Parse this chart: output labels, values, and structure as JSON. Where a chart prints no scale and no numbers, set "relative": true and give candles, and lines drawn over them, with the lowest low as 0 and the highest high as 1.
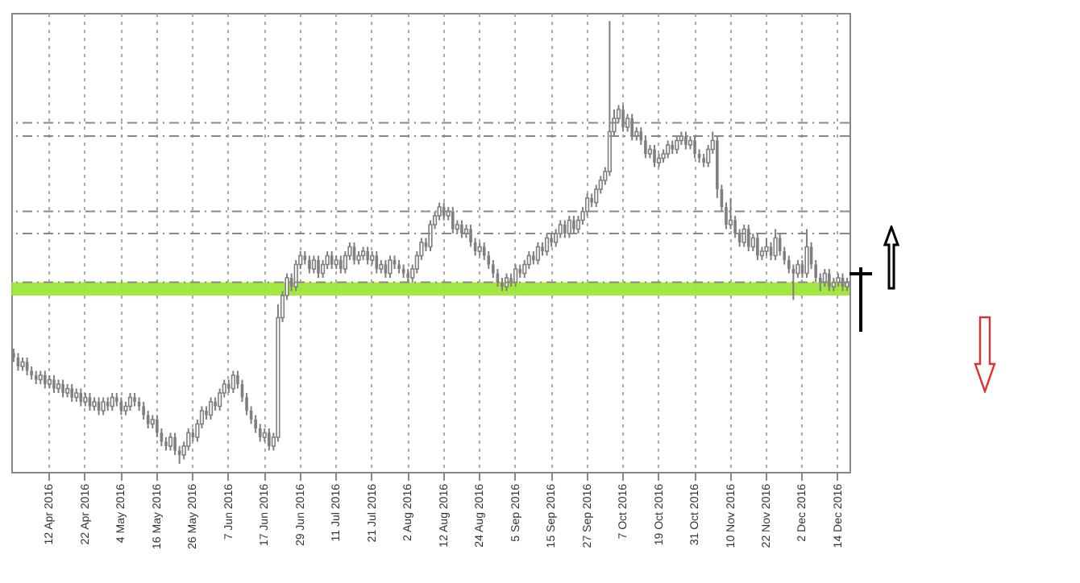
{
  "chart_data": {
    "type": "candlestick",
    "relative": true,
    "color": "#7f7f7f",
    "grid": "x",
    "categories": [
      null,
      null,
      null,
      null,
      null,
      null,
      null,
      null,
      "12 Apr 2016",
      null,
      null,
      null,
      null,
      null,
      null,
      null,
      "22 Apr 2016",
      null,
      null,
      null,
      null,
      null,
      null,
      null,
      "4 May 2016",
      null,
      null,
      null,
      null,
      null,
      null,
      null,
      "16 May 2016",
      null,
      null,
      null,
      null,
      null,
      null,
      null,
      "26 May 2016",
      null,
      null,
      null,
      null,
      null,
      null,
      null,
      "7 Jun 2016",
      null,
      null,
      null,
      null,
      null,
      null,
      null,
      "17 Jun 2016",
      null,
      null,
      null,
      null,
      null,
      null,
      null,
      "29 Jun 2016",
      null,
      null,
      null,
      null,
      null,
      null,
      null,
      "11 Jul 2016",
      null,
      null,
      null,
      null,
      null,
      null,
      null,
      "21 Jul 2016",
      null,
      null,
      null,
      null,
      null,
      null,
      null,
      "2 Aug 2016",
      null,
      null,
      null,
      null,
      null,
      null,
      null,
      "12 Aug 2016",
      null,
      null,
      null,
      null,
      null,
      null,
      null,
      "24 Aug 2016",
      null,
      null,
      null,
      null,
      null,
      null,
      null,
      "5 Sep 2016",
      null,
      null,
      null,
      null,
      null,
      null,
      null,
      "15 Sep 2016",
      null,
      null,
      null,
      null,
      null,
      null,
      null,
      "27 Sep 2016",
      null,
      null,
      null,
      null,
      null,
      null,
      null,
      "7 Oct 2016",
      null,
      null,
      null,
      null,
      null,
      null,
      null,
      "19 Oct 2016",
      null,
      null,
      null,
      null,
      null,
      null,
      null,
      "31 Oct 2016",
      null,
      null,
      null,
      null,
      null,
      null,
      null,
      "10 Nov 2016",
      null,
      null,
      null,
      null,
      null,
      null,
      null,
      "22 Nov 2016",
      null,
      null,
      null,
      null,
      null,
      null,
      null,
      "2 Dec 2016",
      null,
      null,
      null,
      null,
      null,
      null,
      null,
      "14 Dec 2016",
      null,
      null
    ],
    "ohlc": [
      [
        0.25,
        0.26,
        0.23,
        0.24
      ],
      [
        0.24,
        0.25,
        0.21,
        0.22
      ],
      [
        0.22,
        0.24,
        0.21,
        0.23
      ],
      [
        0.23,
        0.24,
        0.2,
        0.21
      ],
      [
        0.21,
        0.22,
        0.19,
        0.2
      ],
      [
        0.2,
        0.21,
        0.18,
        0.19
      ],
      [
        0.19,
        0.21,
        0.18,
        0.2
      ],
      [
        0.2,
        0.21,
        0.17,
        0.18
      ],
      [
        0.18,
        0.2,
        0.17,
        0.19
      ],
      [
        0.19,
        0.2,
        0.16,
        0.17
      ],
      [
        0.17,
        0.19,
        0.16,
        0.18
      ],
      [
        0.18,
        0.19,
        0.15,
        0.16
      ],
      [
        0.16,
        0.18,
        0.15,
        0.17
      ],
      [
        0.17,
        0.18,
        0.14,
        0.15
      ],
      [
        0.15,
        0.17,
        0.14,
        0.16
      ],
      [
        0.16,
        0.17,
        0.13,
        0.14
      ],
      [
        0.14,
        0.16,
        0.13,
        0.15
      ],
      [
        0.15,
        0.16,
        0.12,
        0.13
      ],
      [
        0.13,
        0.15,
        0.12,
        0.14
      ],
      [
        0.14,
        0.15,
        0.11,
        0.12
      ],
      [
        0.12,
        0.15,
        0.11,
        0.14
      ],
      [
        0.14,
        0.15,
        0.12,
        0.13
      ],
      [
        0.13,
        0.16,
        0.12,
        0.15
      ],
      [
        0.15,
        0.16,
        0.13,
        0.14
      ],
      [
        0.14,
        0.15,
        0.11,
        0.12
      ],
      [
        0.12,
        0.14,
        0.11,
        0.13
      ],
      [
        0.13,
        0.16,
        0.12,
        0.15
      ],
      [
        0.15,
        0.16,
        0.13,
        0.14
      ],
      [
        0.14,
        0.15,
        0.12,
        0.13
      ],
      [
        0.13,
        0.14,
        0.1,
        0.11
      ],
      [
        0.11,
        0.12,
        0.08,
        0.09
      ],
      [
        0.09,
        0.11,
        0.08,
        0.1
      ],
      [
        0.1,
        0.11,
        0.06,
        0.07
      ],
      [
        0.07,
        0.08,
        0.04,
        0.05
      ],
      [
        0.05,
        0.06,
        0.03,
        0.04
      ],
      [
        0.04,
        0.07,
        0.03,
        0.06
      ],
      [
        0.06,
        0.07,
        0.02,
        0.03
      ],
      [
        0.03,
        0.04,
        0.0,
        0.02
      ],
      [
        0.02,
        0.05,
        0.01,
        0.04
      ],
      [
        0.04,
        0.08,
        0.03,
        0.07
      ],
      [
        0.07,
        0.08,
        0.05,
        0.06
      ],
      [
        0.06,
        0.1,
        0.05,
        0.09
      ],
      [
        0.09,
        0.13,
        0.08,
        0.12
      ],
      [
        0.12,
        0.13,
        0.1,
        0.11
      ],
      [
        0.11,
        0.15,
        0.1,
        0.14
      ],
      [
        0.14,
        0.15,
        0.12,
        0.13
      ],
      [
        0.13,
        0.17,
        0.12,
        0.16
      ],
      [
        0.16,
        0.19,
        0.15,
        0.18
      ],
      [
        0.18,
        0.19,
        0.16,
        0.17
      ],
      [
        0.17,
        0.21,
        0.16,
        0.2
      ],
      [
        0.2,
        0.21,
        0.17,
        0.18
      ],
      [
        0.18,
        0.19,
        0.14,
        0.15
      ],
      [
        0.15,
        0.16,
        0.11,
        0.12
      ],
      [
        0.12,
        0.13,
        0.09,
        0.1
      ],
      [
        0.1,
        0.11,
        0.07,
        0.08
      ],
      [
        0.08,
        0.09,
        0.05,
        0.06
      ],
      [
        0.06,
        0.08,
        0.05,
        0.07
      ],
      [
        0.07,
        0.08,
        0.03,
        0.04
      ],
      [
        0.04,
        0.07,
        0.03,
        0.06
      ],
      [
        0.06,
        0.36,
        0.05,
        0.33
      ],
      [
        0.33,
        0.39,
        0.32,
        0.38
      ],
      [
        0.38,
        0.43,
        0.37,
        0.42
      ],
      [
        0.42,
        0.43,
        0.39,
        0.4
      ],
      [
        0.4,
        0.46,
        0.39,
        0.45
      ],
      [
        0.45,
        0.48,
        0.44,
        0.47
      ],
      [
        0.47,
        0.48,
        0.45,
        0.46
      ],
      [
        0.46,
        0.47,
        0.43,
        0.44
      ],
      [
        0.44,
        0.47,
        0.43,
        0.46
      ],
      [
        0.46,
        0.47,
        0.42,
        0.43
      ],
      [
        0.43,
        0.46,
        0.42,
        0.45
      ],
      [
        0.45,
        0.48,
        0.44,
        0.47
      ],
      [
        0.47,
        0.48,
        0.44,
        0.45
      ],
      [
        0.45,
        0.47,
        0.44,
        0.46
      ],
      [
        0.46,
        0.47,
        0.43,
        0.44
      ],
      [
        0.44,
        0.48,
        0.43,
        0.47
      ],
      [
        0.47,
        0.5,
        0.46,
        0.49
      ],
      [
        0.49,
        0.5,
        0.45,
        0.46
      ],
      [
        0.46,
        0.48,
        0.45,
        0.47
      ],
      [
        0.47,
        0.49,
        0.46,
        0.48
      ],
      [
        0.48,
        0.49,
        0.45,
        0.46
      ],
      [
        0.46,
        0.48,
        0.45,
        0.47
      ],
      [
        0.47,
        0.48,
        0.43,
        0.44
      ],
      [
        0.44,
        0.46,
        0.43,
        0.45
      ],
      [
        0.45,
        0.46,
        0.42,
        0.43
      ],
      [
        0.43,
        0.47,
        0.42,
        0.46
      ],
      [
        0.46,
        0.47,
        0.44,
        0.45
      ],
      [
        0.45,
        0.46,
        0.43,
        0.44
      ],
      [
        0.44,
        0.45,
        0.42,
        0.43
      ],
      [
        0.43,
        0.44,
        0.41,
        0.42
      ],
      [
        0.42,
        0.45,
        0.41,
        0.44
      ],
      [
        0.44,
        0.48,
        0.43,
        0.47
      ],
      [
        0.47,
        0.51,
        0.46,
        0.5
      ],
      [
        0.5,
        0.51,
        0.48,
        0.49
      ],
      [
        0.49,
        0.55,
        0.48,
        0.54
      ],
      [
        0.54,
        0.57,
        0.53,
        0.56
      ],
      [
        0.56,
        0.59,
        0.55,
        0.58
      ],
      [
        0.58,
        0.59,
        0.55,
        0.56
      ],
      [
        0.56,
        0.58,
        0.55,
        0.57
      ],
      [
        0.57,
        0.58,
        0.52,
        0.53
      ],
      [
        0.53,
        0.55,
        0.52,
        0.54
      ],
      [
        0.54,
        0.55,
        0.51,
        0.52
      ],
      [
        0.52,
        0.54,
        0.51,
        0.53
      ],
      [
        0.53,
        0.54,
        0.49,
        0.5
      ],
      [
        0.5,
        0.51,
        0.47,
        0.48
      ],
      [
        0.48,
        0.5,
        0.47,
        0.49
      ],
      [
        0.49,
        0.5,
        0.46,
        0.47
      ],
      [
        0.47,
        0.48,
        0.44,
        0.45
      ],
      [
        0.45,
        0.46,
        0.42,
        0.43
      ],
      [
        0.43,
        0.44,
        0.4,
        0.41
      ],
      [
        0.41,
        0.42,
        0.39,
        0.4
      ],
      [
        0.4,
        0.43,
        0.39,
        0.42
      ],
      [
        0.42,
        0.43,
        0.4,
        0.41
      ],
      [
        0.41,
        0.45,
        0.4,
        0.44
      ],
      [
        0.44,
        0.45,
        0.42,
        0.43
      ],
      [
        0.43,
        0.46,
        0.42,
        0.45
      ],
      [
        0.45,
        0.48,
        0.44,
        0.47
      ],
      [
        0.47,
        0.48,
        0.45,
        0.46
      ],
      [
        0.46,
        0.5,
        0.45,
        0.49
      ],
      [
        0.49,
        0.5,
        0.47,
        0.48
      ],
      [
        0.48,
        0.52,
        0.47,
        0.51
      ],
      [
        0.51,
        0.52,
        0.49,
        0.5
      ],
      [
        0.5,
        0.53,
        0.49,
        0.52
      ],
      [
        0.52,
        0.55,
        0.51,
        0.54
      ],
      [
        0.54,
        0.55,
        0.51,
        0.52
      ],
      [
        0.52,
        0.56,
        0.51,
        0.55
      ],
      [
        0.55,
        0.56,
        0.52,
        0.53
      ],
      [
        0.53,
        0.56,
        0.52,
        0.55
      ],
      [
        0.55,
        0.58,
        0.54,
        0.57
      ],
      [
        0.57,
        0.61,
        0.56,
        0.6
      ],
      [
        0.6,
        0.61,
        0.58,
        0.59
      ],
      [
        0.59,
        0.63,
        0.58,
        0.62
      ],
      [
        0.62,
        0.65,
        0.61,
        0.64
      ],
      [
        0.64,
        0.67,
        0.63,
        0.66
      ],
      [
        0.66,
        1.0,
        0.65,
        0.75
      ],
      [
        0.75,
        0.8,
        0.74,
        0.78
      ],
      [
        0.78,
        0.81,
        0.77,
        0.8
      ],
      [
        0.8,
        0.81,
        0.75,
        0.76
      ],
      [
        0.76,
        0.79,
        0.75,
        0.78
      ],
      [
        0.78,
        0.79,
        0.73,
        0.74
      ],
      [
        0.74,
        0.76,
        0.73,
        0.75
      ],
      [
        0.75,
        0.76,
        0.72,
        0.73
      ],
      [
        0.73,
        0.74,
        0.69,
        0.7
      ],
      [
        0.7,
        0.72,
        0.69,
        0.71
      ],
      [
        0.71,
        0.72,
        0.67,
        0.68
      ],
      [
        0.68,
        0.7,
        0.67,
        0.69
      ],
      [
        0.69,
        0.71,
        0.68,
        0.7
      ],
      [
        0.7,
        0.73,
        0.69,
        0.72
      ],
      [
        0.72,
        0.73,
        0.7,
        0.71
      ],
      [
        0.71,
        0.74,
        0.7,
        0.73
      ],
      [
        0.73,
        0.75,
        0.72,
        0.74
      ],
      [
        0.74,
        0.75,
        0.71,
        0.72
      ],
      [
        0.72,
        0.74,
        0.71,
        0.73
      ],
      [
        0.73,
        0.74,
        0.69,
        0.7
      ],
      [
        0.7,
        0.71,
        0.68,
        0.69
      ],
      [
        0.69,
        0.7,
        0.67,
        0.68
      ],
      [
        0.68,
        0.72,
        0.67,
        0.71
      ],
      [
        0.71,
        0.75,
        0.7,
        0.73
      ],
      [
        0.73,
        0.74,
        0.6,
        0.62
      ],
      [
        0.62,
        0.63,
        0.57,
        0.58
      ],
      [
        0.58,
        0.59,
        0.53,
        0.54
      ],
      [
        0.54,
        0.6,
        0.53,
        0.55
      ],
      [
        0.55,
        0.56,
        0.51,
        0.52
      ],
      [
        0.52,
        0.53,
        0.49,
        0.5
      ],
      [
        0.5,
        0.54,
        0.49,
        0.53
      ],
      [
        0.53,
        0.54,
        0.48,
        0.49
      ],
      [
        0.49,
        0.52,
        0.48,
        0.51
      ],
      [
        0.51,
        0.52,
        0.46,
        0.47
      ],
      [
        0.47,
        0.49,
        0.46,
        0.48
      ],
      [
        0.48,
        0.51,
        0.47,
        0.49
      ],
      [
        0.49,
        0.5,
        0.46,
        0.47
      ],
      [
        0.47,
        0.53,
        0.46,
        0.51
      ],
      [
        0.51,
        0.52,
        0.47,
        0.48
      ],
      [
        0.48,
        0.49,
        0.45,
        0.46
      ],
      [
        0.46,
        0.47,
        0.43,
        0.44
      ],
      [
        0.44,
        0.45,
        0.37,
        0.43
      ],
      [
        0.43,
        0.46,
        0.42,
        0.45
      ],
      [
        0.45,
        0.46,
        0.42,
        0.43
      ],
      [
        0.43,
        0.53,
        0.42,
        0.49
      ],
      [
        0.49,
        0.5,
        0.44,
        0.45
      ],
      [
        0.45,
        0.46,
        0.41,
        0.42
      ],
      [
        0.42,
        0.43,
        0.39,
        0.41
      ],
      [
        0.41,
        0.44,
        0.4,
        0.43
      ],
      [
        0.43,
        0.44,
        0.39,
        0.4
      ],
      [
        0.4,
        0.42,
        0.39,
        0.41
      ],
      [
        0.41,
        0.43,
        0.4,
        0.42
      ],
      [
        0.42,
        0.43,
        0.39,
        0.4
      ],
      [
        0.4,
        0.42,
        0.39,
        0.41
      ]
    ],
    "ref_lines": [
      {
        "axis": "y",
        "value": 0.77,
        "color": "#888888",
        "line_style": "dashed"
      },
      {
        "axis": "y",
        "value": 0.74,
        "color": "#888888",
        "line_style": "dashed"
      },
      {
        "axis": "y",
        "value": 0.57,
        "color": "#888888",
        "line_style": "dashed"
      },
      {
        "axis": "y",
        "value": 0.52,
        "color": "#888888",
        "line_style": "dashed"
      },
      {
        "axis": "y",
        "value": 0.41,
        "color": "#888888",
        "line_style": "dashed"
      }
    ],
    "bands": [
      {
        "axis": "y",
        "from": 0.38,
        "to": 0.41,
        "color": "#99e62e"
      }
    ]
  }
}
